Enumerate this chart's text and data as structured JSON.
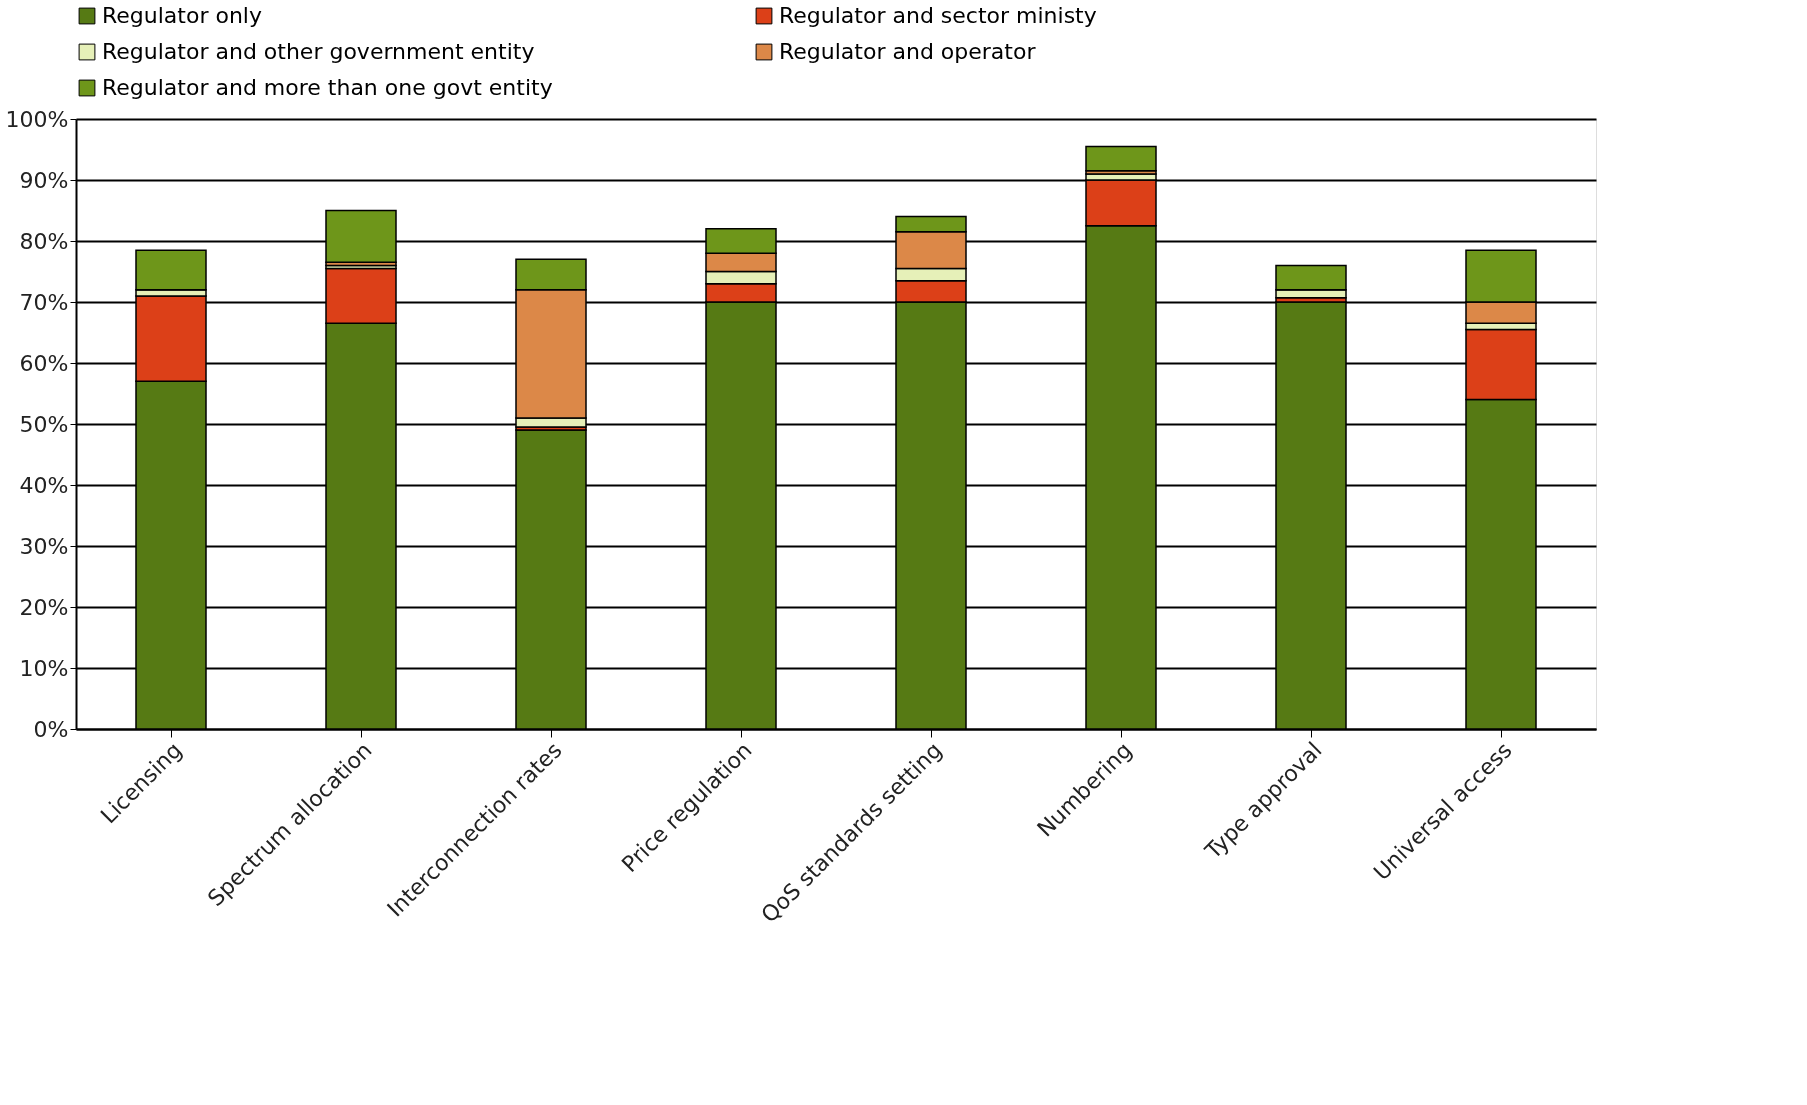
{
  "chart_data": {
    "type": "bar",
    "stacked": true,
    "categories": [
      "Licensing",
      "Spectrum allocation",
      "Interconnection rates",
      "Price regulation",
      "QoS standards setting",
      "Numbering",
      "Type approval",
      "Universal access"
    ],
    "series": [
      {
        "name": "Regulator only",
        "color": "#567a14",
        "values": [
          57,
          66.5,
          49,
          70,
          70,
          82.5,
          70,
          54
        ]
      },
      {
        "name": "Regulator and sector ministy",
        "color": "#dc4018",
        "values": [
          14,
          9,
          0.5,
          3,
          3.5,
          7.5,
          0.7,
          11.5
        ]
      },
      {
        "name": "Regulator and other government entity",
        "color": "#e6f0b8",
        "values": [
          1,
          0.5,
          1.5,
          2,
          2,
          1,
          1.3,
          1
        ]
      },
      {
        "name": "Regulator and operator",
        "color": "#dc8848",
        "values": [
          0,
          0.5,
          21,
          3,
          6,
          0.5,
          0,
          3.5
        ]
      },
      {
        "name": "Regulator and more than one govt entity",
        "color": "#6e961a",
        "values": [
          6.5,
          8.5,
          5,
          4,
          2.5,
          4,
          4,
          8.5
        ]
      }
    ],
    "ylim": [
      0,
      100
    ],
    "yticks": [
      {
        "value": 0,
        "label": "0%"
      },
      {
        "value": 10,
        "label": "10%"
      },
      {
        "value": 20,
        "label": "20%"
      },
      {
        "value": 30,
        "label": "30%"
      },
      {
        "value": 40,
        "label": "40%"
      },
      {
        "value": 50,
        "label": "50%"
      },
      {
        "value": 60,
        "label": "60%"
      },
      {
        "value": 70,
        "label": "70%"
      },
      {
        "value": 80,
        "label": "80%"
      },
      {
        "value": 90,
        "label": "90%"
      },
      {
        "value": 100,
        "label": "100%"
      }
    ],
    "grid": "y",
    "legend": "top"
  }
}
